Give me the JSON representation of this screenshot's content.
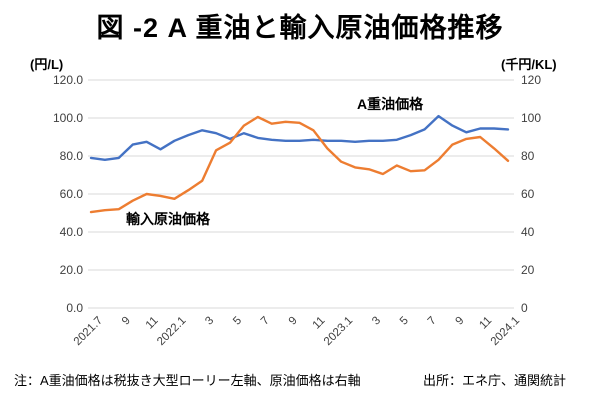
{
  "title": "図 -2 A 重油と輸入原油価格推移",
  "left_axis": {
    "unit": "(円/L)",
    "ticks": [
      "120.0",
      "100.0",
      "80.0",
      "60.0",
      "40.0",
      "20.0",
      "0.0"
    ],
    "min": 0,
    "max": 120
  },
  "right_axis": {
    "unit": "(千円/KL)",
    "ticks": [
      "120",
      "100",
      "80",
      "60",
      "40",
      "20",
      "0"
    ],
    "min": 0,
    "max": 120
  },
  "footer": {
    "note": "注：A重油価格は税抜き大型ローリー左軸、原油価格は右軸",
    "source": "出所：エネ庁、通関統計"
  },
  "chart_data": {
    "type": "line",
    "title": "図 -2 A 重油と輸入原油価格推移",
    "x": [
      "2021.7",
      "2021.8",
      "2021.9",
      "2021.10",
      "2021.11",
      "2021.12",
      "2022.1",
      "2022.2",
      "2022.3",
      "2022.4",
      "2022.5",
      "2022.6",
      "2022.7",
      "2022.8",
      "2022.9",
      "2022.10",
      "2022.11",
      "2022.12",
      "2023.1",
      "2023.2",
      "2023.3",
      "2023.4",
      "2023.5",
      "2023.6",
      "2023.7",
      "2023.8",
      "2023.9",
      "2023.10",
      "2023.11",
      "2023.12",
      "2024.1"
    ],
    "x_tick_labels": [
      "2021.7",
      "9",
      "11",
      "2022.1",
      "3",
      "5",
      "7",
      "9",
      "11",
      "2023.1",
      "3",
      "5",
      "7",
      "9",
      "11",
      "2024.1"
    ],
    "x_tick_every": 2,
    "ylim": [
      0,
      120
    ],
    "grid": true,
    "legend": "inline-labels",
    "series": [
      {
        "name": "A重油価格",
        "axis": "left",
        "unit": "円/L",
        "color": "#4472C4",
        "values": [
          79,
          78,
          79,
          86,
          87.5,
          83.5,
          88,
          91,
          93.5,
          92,
          89,
          92,
          89.5,
          88.5,
          88,
          88,
          88.5,
          88,
          88,
          87.5,
          88,
          88,
          88.5,
          91,
          94,
          101,
          96,
          92.5,
          94.5,
          94.5,
          94
        ]
      },
      {
        "name": "輸入原油価格",
        "axis": "right",
        "unit": "千円/KL",
        "color": "#ED7D31",
        "values": [
          50.5,
          51.5,
          52,
          56.5,
          60,
          59,
          57.5,
          62,
          67,
          83,
          87,
          96,
          100.5,
          97,
          98,
          97.5,
          93.5,
          84,
          77,
          74,
          73,
          70.5,
          75,
          72,
          72.5,
          78,
          86,
          89,
          90,
          84,
          77.5
        ]
      }
    ]
  }
}
